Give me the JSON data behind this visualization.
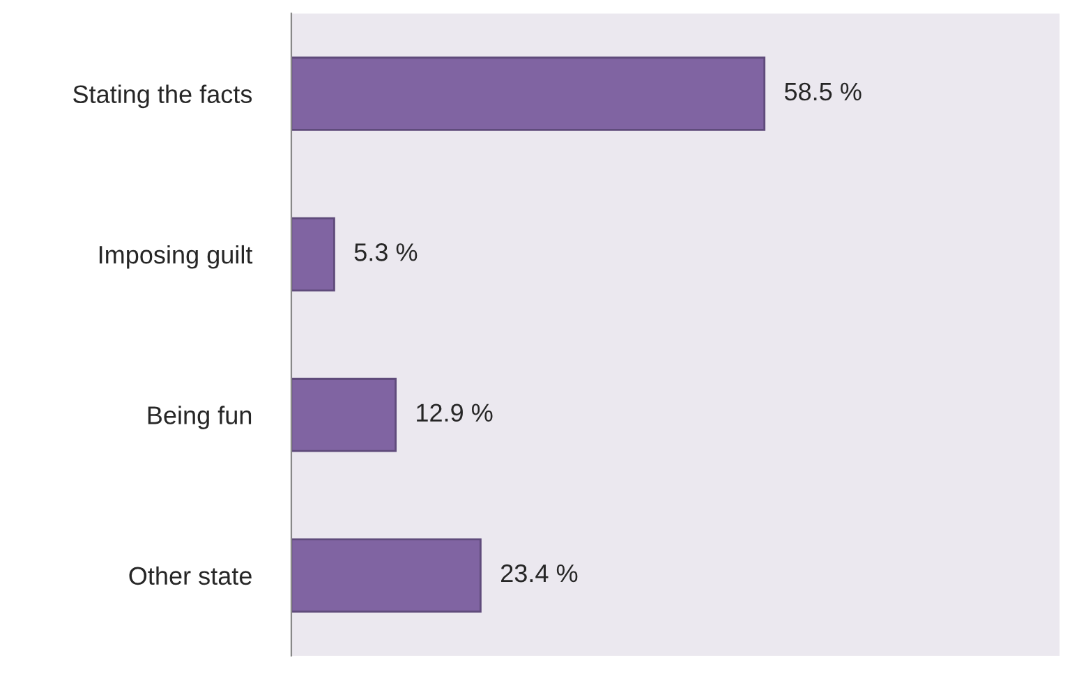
{
  "chart_data": {
    "type": "bar",
    "orientation": "horizontal",
    "categories": [
      "Stating the facts",
      "Imposing guilt",
      "Being fun",
      "Other state"
    ],
    "values": [
      58.5,
      5.3,
      12.9,
      23.4
    ],
    "value_labels": [
      "58.5 %",
      "5.3 %",
      "12.9 %",
      "23.4 %"
    ],
    "color": "#8064a2",
    "xlim": [
      0,
      95
    ],
    "tick_labels": "y",
    "grid": false
  }
}
